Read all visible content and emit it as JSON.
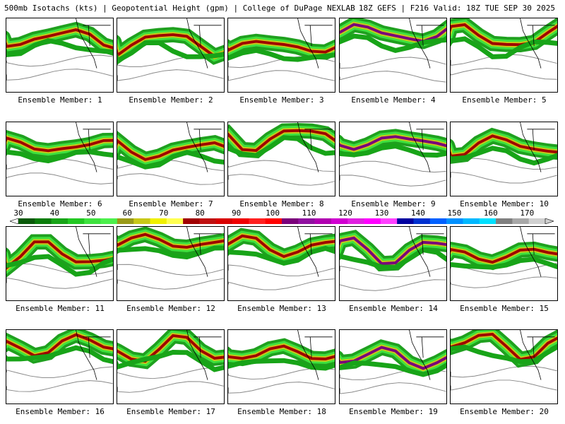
{
  "header": {
    "left_text": "500mb Isotachs (kts) | Geopotential Height (gpm) | College of DuPage NEXLAB",
    "right_text": "18Z GEFS | F216 Valid: 18Z TUE SEP 30 2025"
  },
  "panels": [
    {
      "label": "Ensemble Member: 1"
    },
    {
      "label": "Ensemble Member: 2"
    },
    {
      "label": "Ensemble Member: 3"
    },
    {
      "label": "Ensemble Member: 4"
    },
    {
      "label": "Ensemble Member: 5"
    },
    {
      "label": "Ensemble Member: 6"
    },
    {
      "label": "Ensemble Member: 7"
    },
    {
      "label": "Ensemble Member: 8"
    },
    {
      "label": "Ensemble Member: 9"
    },
    {
      "label": "Ensemble Member: 10"
    },
    {
      "label": "Ensemble Member: 11"
    },
    {
      "label": "Ensemble Member: 12"
    },
    {
      "label": "Ensemble Member: 13"
    },
    {
      "label": "Ensemble Member: 14"
    },
    {
      "label": "Ensemble Member: 15"
    },
    {
      "label": "Ensemble Member: 16"
    },
    {
      "label": "Ensemble Member: 17"
    },
    {
      "label": "Ensemble Member: 18"
    },
    {
      "label": "Ensemble Member: 19"
    },
    {
      "label": "Ensemble Member: 20"
    }
  ],
  "colorbar": {
    "min": 30,
    "max": 175,
    "ticks": [
      "30",
      "40",
      "50",
      "60",
      "70",
      "80",
      "90",
      "100",
      "110",
      "120",
      "130",
      "140",
      "150",
      "160",
      "170"
    ],
    "colors": [
      "#0a5a0a",
      "#0b7d0b",
      "#18a418",
      "#23c823",
      "#3ee23e",
      "#4cf04c",
      "#9a9a18",
      "#c8c818",
      "#f0f000",
      "#ffff50",
      "#a00000",
      "#c01010",
      "#d80000",
      "#f00000",
      "#ff2020",
      "#ff0000",
      "#7a007a",
      "#9010a0",
      "#b000b0",
      "#d000d0",
      "#e020e0",
      "#ff00ff",
      "#ff40ff",
      "#0000a0",
      "#0030d0",
      "#0060ff",
      "#0090ff",
      "#00b8ff",
      "#00e0ff",
      "#808080",
      "#a8a8a8",
      "#d0d0d0"
    ]
  }
}
